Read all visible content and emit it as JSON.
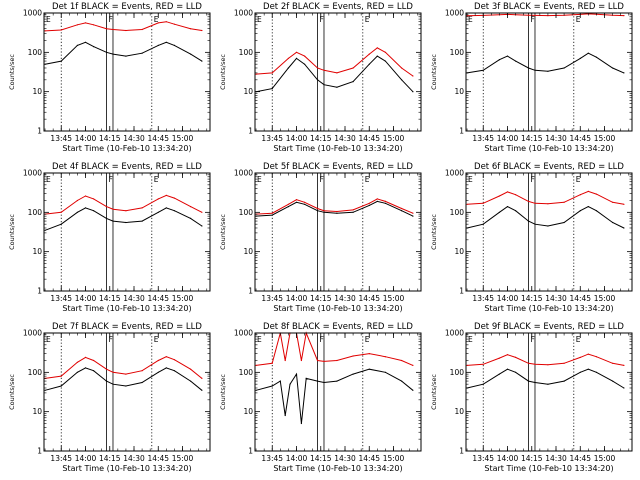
{
  "figure": {
    "background": "#ffffff"
  },
  "colors": {
    "events": "#000000",
    "lld": "#e00000",
    "frame": "#000000"
  },
  "axes": {
    "yscale": "log",
    "ylim": [
      1,
      1000
    ],
    "ytick_values": [
      1,
      10,
      100,
      1000
    ],
    "ytick_labels": [
      "1",
      "10",
      "100",
      "1000"
    ],
    "ylabel": "Counts/sec",
    "xlim": [
      "13:34:20",
      "15:17"
    ],
    "xtick_values": [
      "13:45",
      "14:00",
      "14:15",
      "14:30",
      "14:45",
      "15:00"
    ],
    "xtick_labels": [
      "13:45",
      "14:00",
      "14:15",
      "14:30",
      "14:45",
      "15:00"
    ],
    "xlabel": "Start Time (10-Feb-10 13:34:20)",
    "vlines_dotted": [
      "13:45",
      "14:41"
    ],
    "vlines_solid": [
      "14:13",
      "14:17"
    ],
    "flags": [
      {
        "label": "E",
        "time": "13:34:20"
      },
      {
        "label": "F",
        "time": "14:13"
      },
      {
        "label": "E",
        "time": "14:41"
      }
    ],
    "grid": false
  },
  "chart_data": [
    {
      "type": "line",
      "title": "Det 1f BLACK = Events, RED = LLD",
      "yscale": "log",
      "x": [
        "13:35",
        "13:45",
        "13:55",
        "14:00",
        "14:05",
        "14:13",
        "14:17",
        "14:25",
        "14:35",
        "14:45",
        "14:50",
        "14:55",
        "15:05",
        "15:12"
      ],
      "series": [
        {
          "name": "Events",
          "color": "black",
          "values": [
            50,
            60,
            150,
            180,
            140,
            100,
            90,
            80,
            95,
            150,
            180,
            150,
            90,
            60
          ]
        },
        {
          "name": "LLD",
          "color": "red",
          "values": [
            350,
            370,
            500,
            560,
            500,
            400,
            380,
            360,
            380,
            560,
            600,
            520,
            400,
            360
          ]
        }
      ]
    },
    {
      "type": "line",
      "title": "Det 2f BLACK = Events, RED = LLD",
      "yscale": "log",
      "x": [
        "13:35",
        "13:45",
        "13:55",
        "14:00",
        "14:05",
        "14:13",
        "14:17",
        "14:25",
        "14:35",
        "14:45",
        "14:50",
        "14:55",
        "15:05",
        "15:12"
      ],
      "series": [
        {
          "name": "Events",
          "color": "black",
          "values": [
            10,
            12,
            40,
            70,
            50,
            20,
            15,
            13,
            18,
            50,
            80,
            60,
            20,
            10
          ]
        },
        {
          "name": "LLD",
          "color": "red",
          "values": [
            28,
            30,
            70,
            100,
            80,
            40,
            35,
            30,
            40,
            90,
            130,
            100,
            40,
            25
          ]
        }
      ]
    },
    {
      "type": "line",
      "title": "Det 3f BLACK = Events, RED = LLD",
      "yscale": "log",
      "x": [
        "13:35",
        "13:45",
        "13:55",
        "14:00",
        "14:05",
        "14:13",
        "14:17",
        "14:25",
        "14:35",
        "14:45",
        "14:50",
        "14:55",
        "15:05",
        "15:12"
      ],
      "series": [
        {
          "name": "Events",
          "color": "black",
          "values": [
            30,
            35,
            65,
            80,
            60,
            40,
            35,
            33,
            40,
            70,
            95,
            75,
            40,
            30
          ]
        },
        {
          "name": "LLD",
          "color": "red",
          "values": [
            850,
            870,
            900,
            920,
            900,
            880,
            870,
            860,
            880,
            920,
            950,
            930,
            880,
            860
          ]
        }
      ]
    },
    {
      "type": "line",
      "title": "Det 4f BLACK = Events, RED = LLD",
      "yscale": "log",
      "x": [
        "13:35",
        "13:45",
        "13:55",
        "14:00",
        "14:05",
        "14:13",
        "14:17",
        "14:25",
        "14:35",
        "14:45",
        "14:50",
        "14:55",
        "15:05",
        "15:12"
      ],
      "series": [
        {
          "name": "Events",
          "color": "black",
          "values": [
            35,
            50,
            100,
            130,
            110,
            70,
            60,
            55,
            60,
            100,
            130,
            110,
            70,
            45
          ]
        },
        {
          "name": "LLD",
          "color": "red",
          "values": [
            90,
            100,
            200,
            260,
            220,
            140,
            120,
            110,
            130,
            220,
            270,
            230,
            140,
            100
          ]
        }
      ]
    },
    {
      "type": "line",
      "title": "Det 5f BLACK = Events, RED = LLD",
      "yscale": "log",
      "x": [
        "13:35",
        "13:45",
        "13:55",
        "14:00",
        "14:05",
        "14:13",
        "14:17",
        "14:25",
        "14:35",
        "14:45",
        "14:50",
        "14:55",
        "15:05",
        "15:12"
      ],
      "series": [
        {
          "name": "Events",
          "color": "black",
          "values": [
            80,
            85,
            140,
            180,
            160,
            110,
            100,
            95,
            100,
            150,
            190,
            170,
            110,
            80
          ]
        },
        {
          "name": "LLD",
          "color": "red",
          "values": [
            90,
            95,
            160,
            210,
            180,
            125,
            110,
            105,
            115,
            170,
            220,
            190,
            125,
            95
          ]
        }
      ]
    },
    {
      "type": "line",
      "title": "Det 6f BLACK = Events, RED = LLD",
      "yscale": "log",
      "x": [
        "13:35",
        "13:45",
        "13:55",
        "14:00",
        "14:05",
        "14:13",
        "14:17",
        "14:25",
        "14:35",
        "14:45",
        "14:50",
        "14:55",
        "15:05",
        "15:12"
      ],
      "series": [
        {
          "name": "Events",
          "color": "black",
          "values": [
            40,
            50,
            100,
            140,
            110,
            60,
            50,
            45,
            55,
            110,
            140,
            110,
            55,
            40
          ]
        },
        {
          "name": "LLD",
          "color": "red",
          "values": [
            160,
            170,
            260,
            330,
            280,
            190,
            170,
            165,
            180,
            280,
            340,
            290,
            180,
            160
          ]
        }
      ]
    },
    {
      "type": "line",
      "title": "Det 7f BLACK = Events, RED = LLD",
      "yscale": "log",
      "x": [
        "13:35",
        "13:45",
        "13:55",
        "14:00",
        "14:05",
        "14:13",
        "14:17",
        "14:25",
        "14:35",
        "14:45",
        "14:50",
        "14:55",
        "15:05",
        "15:12"
      ],
      "series": [
        {
          "name": "Events",
          "color": "black",
          "values": [
            35,
            45,
            100,
            130,
            110,
            60,
            50,
            45,
            55,
            100,
            130,
            110,
            60,
            35
          ]
        },
        {
          "name": "LLD",
          "color": "red",
          "values": [
            70,
            80,
            180,
            240,
            200,
            120,
            100,
            90,
            110,
            200,
            250,
            210,
            120,
            70
          ]
        }
      ]
    },
    {
      "type": "line",
      "title": "Det 8f BLACK = Events, RED = LLD",
      "yscale": "log",
      "x": [
        "13:35",
        "13:45",
        "13:50",
        "13:53",
        "13:56",
        "14:00",
        "14:03",
        "14:06",
        "14:13",
        "14:17",
        "14:25",
        "14:35",
        "14:45",
        "14:55",
        "15:05",
        "15:12"
      ],
      "series": [
        {
          "name": "Events",
          "color": "black",
          "values": [
            35,
            45,
            60,
            8,
            50,
            90,
            5,
            70,
            60,
            55,
            60,
            90,
            120,
            100,
            60,
            35
          ]
        },
        {
          "name": "LLD",
          "color": "red",
          "values": [
            150,
            170,
            1000,
            200,
            1000,
            1000,
            200,
            1000,
            200,
            190,
            200,
            260,
            300,
            250,
            200,
            150
          ]
        }
      ]
    },
    {
      "type": "line",
      "title": "Det 9f BLACK = Events, RED = LLD",
      "yscale": "log",
      "x": [
        "13:35",
        "13:45",
        "13:55",
        "14:00",
        "14:05",
        "14:13",
        "14:17",
        "14:25",
        "14:35",
        "14:45",
        "14:50",
        "14:55",
        "15:05",
        "15:12"
      ],
      "series": [
        {
          "name": "Events",
          "color": "black",
          "values": [
            40,
            50,
            90,
            120,
            100,
            60,
            55,
            50,
            60,
            100,
            120,
            100,
            60,
            40
          ]
        },
        {
          "name": "LLD",
          "color": "red",
          "values": [
            150,
            160,
            230,
            280,
            240,
            170,
            160,
            155,
            170,
            240,
            290,
            250,
            170,
            150
          ]
        }
      ]
    }
  ]
}
